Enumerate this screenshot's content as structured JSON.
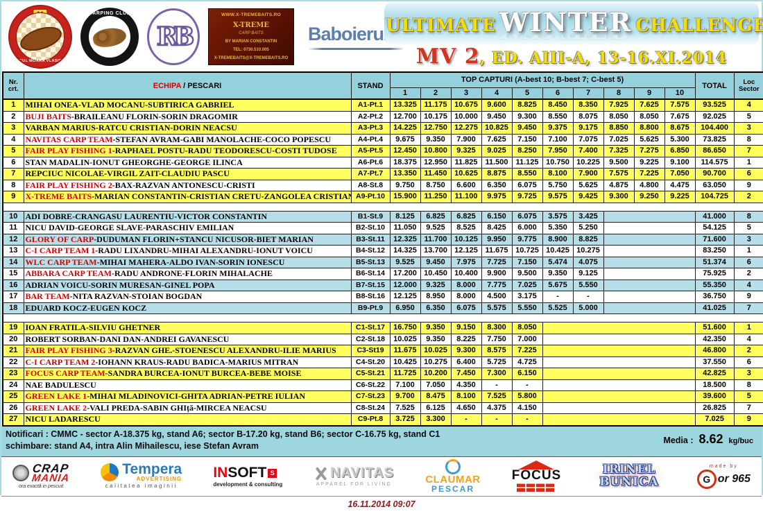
{
  "colors": {
    "accent_red": "#d40000",
    "row_yellow": "#ffff5e",
    "row_blue": "#b7dfe9",
    "header_blue": "#95d1dc"
  },
  "header": {
    "logos": [
      {
        "id": "moara-vlasiei",
        "top": "PESCUIT SPORTIV",
        "center": "M",
        "arc": "LACUL MOARA VLASIEI 2"
      },
      {
        "id": "carping-club",
        "arc": "CARPING CLUB"
      },
      {
        "id": "rb",
        "text": "RB"
      },
      {
        "id": "x-treme",
        "line1": "WWW.X-TREMEBAITS.RO",
        "line2": "X-TREME",
        "line3": "CARP BAITS",
        "line4": "BY MARIAN CONSTANTIN",
        "line5": "TEL: 0730.510.005",
        "line6": "X-TREMEBAITS@X-TREMEBAITS.RO"
      },
      {
        "id": "baboieru",
        "text": "Baboieru",
        "suffix": ".com"
      }
    ],
    "title": {
      "word1": "ULTIMATE",
      "word2": "WINTER",
      "word3": "CHALLENGE",
      "sub_red": "MV 2",
      "sub_rest": ", ED. AIII-A, 13-16.XI.2014"
    }
  },
  "table": {
    "nr_header_line1": "Nr.",
    "nr_header_line2": "crt.",
    "echipa_header_red": "ECHIPA",
    "echipa_header_rest": " / PESCARI",
    "stand_header": "STAND",
    "top_header": "TOP CAPTURI (A-best 10; B-best 7; C-best 5)",
    "capture_cols": [
      "1",
      "2",
      "3",
      "4",
      "5",
      "6",
      "7",
      "8",
      "9",
      "10"
    ],
    "total_header": "TOTAL",
    "loc_header_line1": "Loc",
    "loc_header_line2": "Sector",
    "sections": [
      {
        "sector": "A",
        "shade": "yellow",
        "rows": [
          {
            "nr": "1",
            "team_red": "",
            "team": "MIHAI ONEA-VLAD MOCANU-SUBTIRICA GABRIEL",
            "stand": "A1-Pt.1",
            "captures": [
              "13.325",
              "11.175",
              "10.675",
              "9.600",
              "8.825",
              "8.450",
              "8.350",
              "7.925",
              "7.625",
              "7.575"
            ],
            "total": "93.525",
            "loc": "4"
          },
          {
            "nr": "2",
            "team_red": "BUJI BAITS",
            "team": "-BRAILEANU FLORIN-SORIN DRAGOMIR",
            "stand": "A2-Pt.2",
            "captures": [
              "12.700",
              "10.175",
              "10.000",
              "9.450",
              "9.300",
              "8.550",
              "8.075",
              "8.050",
              "8.050",
              "7.675"
            ],
            "total": "92.025",
            "loc": "5"
          },
          {
            "nr": "3",
            "team_red": "",
            "team": "VARBAN MARIUS-RATCU CRISTIAN-DORIN NEACSU",
            "stand": "A3-Pt.3",
            "captures": [
              "14.225",
              "12.750",
              "12.275",
              "10.825",
              "9.450",
              "9.375",
              "9.175",
              "8.850",
              "8.800",
              "8.675"
            ],
            "total": "104.400",
            "loc": "3"
          },
          {
            "nr": "4",
            "team_red": "NAVITAS CARP TEAM",
            "team": "-STEFAN AVRAM-GABI MANOLACHE-COCO POPESCU",
            "stand": "A4-Pt.4",
            "captures": [
              "9.675",
              "9.350",
              "7.900",
              "7.625",
              "7.150",
              "7.100",
              "7.075",
              "7.025",
              "5.625",
              "5.300"
            ],
            "total": "73.825",
            "loc": "8"
          },
          {
            "nr": "5",
            "team_red": "FAIR PLAY FISHING 1",
            "team": "-RAPHAEL POSTU-RADU TEODORESCU-COSTI TUDOSE",
            "stand": "A5-Pt.5",
            "captures": [
              "12.450",
              "10.800",
              "9.325",
              "9.025",
              "8.250",
              "7.950",
              "7.400",
              "7.325",
              "7.275",
              "6.850"
            ],
            "total": "86.650",
            "loc": "7"
          },
          {
            "nr": "6",
            "team_red": "",
            "team": "STAN MADALIN-IONUT GHEORGHE-GEORGE ILINCA",
            "stand": "A6-Pt.6",
            "captures": [
              "18.375",
              "12.950",
              "11.825",
              "11.500",
              "11.125",
              "10.750",
              "10.225",
              "9.500",
              "9.225",
              "9.100"
            ],
            "total": "114.575",
            "loc": "1"
          },
          {
            "nr": "7",
            "team_red": "",
            "team": "REPCIUC NICOLAE-VIRGIL ZAIT-CLAUDIU PASCU",
            "stand": "A7-Pt.7",
            "captures": [
              "13.350",
              "11.450",
              "10.625",
              "8.875",
              "8.550",
              "8.100",
              "7.900",
              "7.575",
              "7.225",
              "7.050"
            ],
            "total": "90.700",
            "loc": "6"
          },
          {
            "nr": "8",
            "team_red": "FAIR PLAY FISHING 2",
            "team": "-BAX-RAZVAN ANTONESCU-CRISTI",
            "stand": "A8-St.8",
            "captures": [
              "9.750",
              "8.750",
              "6.600",
              "6.350",
              "6.075",
              "5.750",
              "5.625",
              "4.875",
              "4.800",
              "4.475"
            ],
            "total": "63.050",
            "loc": "9"
          },
          {
            "nr": "9",
            "team_red": "X-TREME BAITS",
            "team": "-MARIAN CONSTANTIN-CRISTIAN CRETU-ZANGOLEA CRISTIAN",
            "stand": "A9-Pt.10",
            "captures": [
              "15.900",
              "11.250",
              "11.100",
              "9.975",
              "9.725",
              "9.575",
              "9.425",
              "9.300",
              "9.250",
              "9.225"
            ],
            "total": "104.725",
            "loc": "2"
          }
        ]
      },
      {
        "sector": "B",
        "shade": "blue",
        "rows": [
          {
            "nr": "10",
            "team_red": "",
            "team": "ADI DOBRE-CRANGASU LAURENTIU-VICTOR CONSTANTIN",
            "stand": "B1-St.9",
            "captures": [
              "8.125",
              "6.825",
              "6.825",
              "6.150",
              "6.075",
              "3.575",
              "3.425"
            ],
            "total": "41.000",
            "loc": "8"
          },
          {
            "nr": "11",
            "team_red": "",
            "team": "NICU DAVID-GEORGE SLAVE-PARASCHIV EMILIAN",
            "stand": "B2-St.10",
            "captures": [
              "11.050",
              "9.525",
              "8.525",
              "8.425",
              "6.000",
              "5.350",
              "5.250"
            ],
            "total": "54.125",
            "loc": "5"
          },
          {
            "nr": "12",
            "team_red": "GLORY OF CARP",
            "team": "-DUDUMAN FLORIN+STANCU NICUSOR-BIET MARIAN",
            "stand": "B3-St.11",
            "captures": [
              "12.325",
              "11.700",
              "10.125",
              "9.950",
              "9.775",
              "8.900",
              "8.825"
            ],
            "total": "71.600",
            "loc": "3"
          },
          {
            "nr": "13",
            "team_red": "C-I CARP TEAM 1",
            "team": "-RADU LIXANDRU-MIHAI ALEXANDRU-IONUT VOICU",
            "stand": "B4-St.12",
            "captures": [
              "14.325",
              "13.700",
              "12.125",
              "11.675",
              "10.725",
              "10.425",
              "10.275"
            ],
            "total": "83.250",
            "loc": "1"
          },
          {
            "nr": "14",
            "team_red": "WLC CARP TEAM",
            "team": "-MIHAI MAHERA-ALDO IVAN-SORIN IONESCU",
            "stand": "B5-St.13",
            "captures": [
              "9.525",
              "9.450",
              "7.975",
              "7.725",
              "7.150",
              "5.474",
              "4.075"
            ],
            "total": "51.374",
            "loc": "6"
          },
          {
            "nr": "15",
            "team_red": "ABBARA CARP TEAM",
            "team": "-RADU ANDRONE-FLORIN MIHALACHE",
            "stand": "B6-St.14",
            "captures": [
              "17.200",
              "10.450",
              "10.400",
              "9.900",
              "9.500",
              "9.350",
              "9.125"
            ],
            "total": "75.925",
            "loc": "2"
          },
          {
            "nr": "16",
            "team_red": "",
            "team": "ADRIAN VOICU-SORIN MURESAN-GINEL POPA",
            "stand": "B7-St.15",
            "captures": [
              "12.000",
              "9.325",
              "8.000",
              "7.775",
              "7.025",
              "5.675",
              "5.550"
            ],
            "total": "55.350",
            "loc": "4"
          },
          {
            "nr": "17",
            "team_red": "BAR TEAM",
            "team": "-NITA RAZVAN-STOIAN BOGDAN",
            "stand": "B8-St.16",
            "captures": [
              "12.125",
              "8.950",
              "8.000",
              "4.500",
              "3.175",
              "-",
              "-"
            ],
            "total": "36.750",
            "loc": "9"
          },
          {
            "nr": "18",
            "team_red": "",
            "team": "EDUARD KOCZ-EUGEN KOCZ",
            "stand": "B9-Pt.9",
            "captures": [
              "6.950",
              "6.350",
              "6.075",
              "5.575",
              "5.550",
              "5.525",
              "5.000"
            ],
            "total": "41.025",
            "loc": "7"
          }
        ]
      },
      {
        "sector": "C",
        "shade": "yellow",
        "rows": [
          {
            "nr": "19",
            "team_red": "",
            "team": "IOAN FRATILA-SILVIU GHETNER",
            "stand": "C1-St.17",
            "captures": [
              "16.750",
              "9.350",
              "9.150",
              "8.300",
              "8.050"
            ],
            "total": "51.600",
            "loc": "1"
          },
          {
            "nr": "20",
            "team_red": "",
            "team": "ROBERT SORBAN-DANI DAN-ANDREI GAVANESCU",
            "stand": "C2-St.18",
            "captures": [
              "10.025",
              "9.350",
              "8.225",
              "7.750",
              "7.000"
            ],
            "total": "42.350",
            "loc": "4"
          },
          {
            "nr": "21",
            "team_red": "FAIR PLAY FISHING 3",
            "team": "-RAZVAN GHE.-STOENESCU ALEXANDRU-ILIE MARIUS",
            "stand": "C3-St19",
            "captures": [
              "11.675",
              "10.025",
              "9.300",
              "8.575",
              "7.225"
            ],
            "total": "46.800",
            "loc": "2"
          },
          {
            "nr": "22",
            "team_red": "C-I CARP TEAM 2",
            "team": "-IOHANN KRAUS-RADU BADICA-MARIUS MITRAN",
            "stand": "C4-St.20",
            "captures": [
              "10.425",
              "10.275",
              "6.400",
              "5.725",
              "4.725"
            ],
            "total": "37.550",
            "loc": "6"
          },
          {
            "nr": "23",
            "team_red": "FOCUS CARP TEAM",
            "team": "-SANDRA BURCEA-IONUT BURCEA-BEBE MOISE",
            "stand": "C5-St.21",
            "captures": [
              "11.725",
              "10.200",
              "7.450",
              "7.300",
              "6.150"
            ],
            "total": "42.825",
            "loc": "3"
          },
          {
            "nr": "24",
            "team_red": "",
            "team": "NAE BADULESCU",
            "stand": "C6-St.22",
            "captures": [
              "7.100",
              "7.050",
              "4.350",
              "-",
              "-"
            ],
            "total": "18.500",
            "loc": "8"
          },
          {
            "nr": "25",
            "team_red": "GREEN LAKE 1",
            "team": "-MIHAI MLADINOVICI-GHITA ADRIAN-PETRE IULIAN",
            "stand": "C7-St.23",
            "captures": [
              "9.700",
              "8.475",
              "8.100",
              "7.525",
              "5.800"
            ],
            "total": "39.600",
            "loc": "5"
          },
          {
            "nr": "26",
            "team_red": "GREEN LAKE 2",
            "team": "-VALI PREDA-SABIN GHIță-MIRCEA NEACSU",
            "stand": "C8-St.24",
            "captures": [
              "7.525",
              "6.125",
              "4.650",
              "4.375",
              "4.150"
            ],
            "total": "26.825",
            "loc": "7"
          },
          {
            "nr": "27",
            "team_red": "",
            "team": "NICU LADARESCU",
            "stand": "C9-Pt.8",
            "captures": [
              "3.725",
              "3.300",
              "-",
              "-",
              "-"
            ],
            "total": "7.025",
            "loc": "9"
          }
        ]
      }
    ]
  },
  "notes": {
    "line1": "Notificari : CMMC - sector A-18.375 kg, stand A6; sector B-17.20 kg, stand B6; sector C-16.75 kg, stand C1",
    "line2": "schimbare: stand A4, intra Alin Mihailescu, iese Stefan Avram",
    "media_label": "Media :",
    "media_value": "8.62",
    "media_unit": "kg/buc"
  },
  "footer": {
    "logos": [
      {
        "id": "crap-mania",
        "line1": "CRAP",
        "line2": "MANIA",
        "tagline": "ora exactă in pescuit"
      },
      {
        "id": "tempera",
        "name": "Tempera",
        "sub": "ADVERTISING",
        "tagline": "calitatea imaginii"
      },
      {
        "id": "insoft",
        "part1": "IN",
        "part2": "SOFT",
        "square": "S",
        "tagline": "development & consulting"
      },
      {
        "id": "navitas",
        "name": "NAVITAS",
        "tagline": "APPAREL FOR LIVING"
      },
      {
        "id": "claumar",
        "name": "CLAUMAR",
        "sub": "PESCAR"
      },
      {
        "id": "focus",
        "name": "FOCUS"
      },
      {
        "id": "irinel-bunica",
        "line1": "IRINEL",
        "line2": "BUNICA"
      },
      {
        "id": "gor965",
        "made": "made by",
        "g": "G",
        "name": "or 965"
      }
    ],
    "timestamp": "16.11.2014 09:07"
  }
}
